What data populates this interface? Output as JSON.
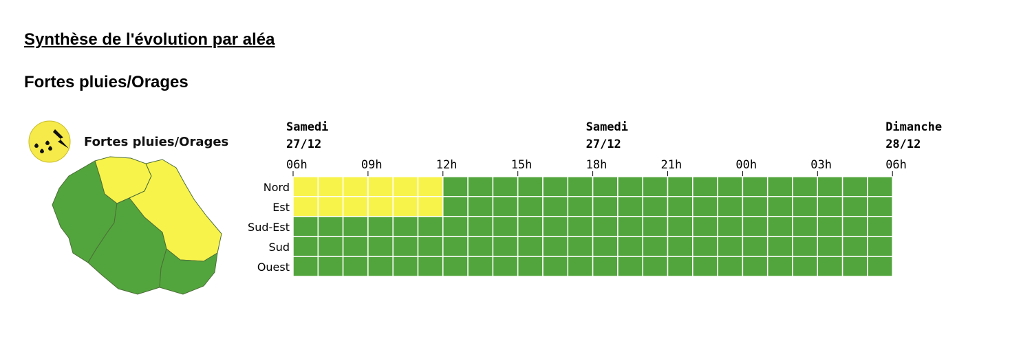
{
  "page": {
    "section_title": "Synthèse de l'évolution par aléa",
    "hazard_title": "Fortes pluies/Orages"
  },
  "legend": {
    "icon": "storm-icon",
    "label": "Fortes pluies/Orages",
    "icon_color": "#f5ea4a"
  },
  "colors": {
    "yellow": "#f7f34b",
    "green": "#52a53c",
    "grid": "#ffffff"
  },
  "map_regions": [
    {
      "name": "Nord",
      "level": "yellow"
    },
    {
      "name": "Est",
      "level": "yellow"
    },
    {
      "name": "Sud-Est",
      "level": "green"
    },
    {
      "name": "Sud",
      "level": "green"
    },
    {
      "name": "Ouest",
      "level": "green"
    }
  ],
  "chart_data": {
    "type": "heatmap",
    "date_headers": [
      {
        "at": "06h",
        "day": "Samedi",
        "date": "27/12"
      },
      {
        "at": "18h",
        "day": "Samedi",
        "date": "27/12"
      },
      {
        "at": "06h_next",
        "day": "Dimanche",
        "date": "28/12"
      }
    ],
    "x_ticks": [
      "06h",
      "09h",
      "12h",
      "15h",
      "18h",
      "21h",
      "00h",
      "03h",
      "06h"
    ],
    "hours_per_cell": 1,
    "total_hours": 24,
    "rows": [
      "Nord",
      "Est",
      "Sud-Est",
      "Sud",
      "Ouest"
    ],
    "values": [
      [
        "yellow",
        "yellow",
        "yellow",
        "yellow",
        "yellow",
        "yellow",
        "green",
        "green",
        "green",
        "green",
        "green",
        "green",
        "green",
        "green",
        "green",
        "green",
        "green",
        "green",
        "green",
        "green",
        "green",
        "green",
        "green",
        "green"
      ],
      [
        "yellow",
        "yellow",
        "yellow",
        "yellow",
        "yellow",
        "yellow",
        "green",
        "green",
        "green",
        "green",
        "green",
        "green",
        "green",
        "green",
        "green",
        "green",
        "green",
        "green",
        "green",
        "green",
        "green",
        "green",
        "green",
        "green"
      ],
      [
        "green",
        "green",
        "green",
        "green",
        "green",
        "green",
        "green",
        "green",
        "green",
        "green",
        "green",
        "green",
        "green",
        "green",
        "green",
        "green",
        "green",
        "green",
        "green",
        "green",
        "green",
        "green",
        "green",
        "green"
      ],
      [
        "green",
        "green",
        "green",
        "green",
        "green",
        "green",
        "green",
        "green",
        "green",
        "green",
        "green",
        "green",
        "green",
        "green",
        "green",
        "green",
        "green",
        "green",
        "green",
        "green",
        "green",
        "green",
        "green",
        "green"
      ],
      [
        "green",
        "green",
        "green",
        "green",
        "green",
        "green",
        "green",
        "green",
        "green",
        "green",
        "green",
        "green",
        "green",
        "green",
        "green",
        "green",
        "green",
        "green",
        "green",
        "green",
        "green",
        "green",
        "green",
        "green"
      ]
    ]
  }
}
